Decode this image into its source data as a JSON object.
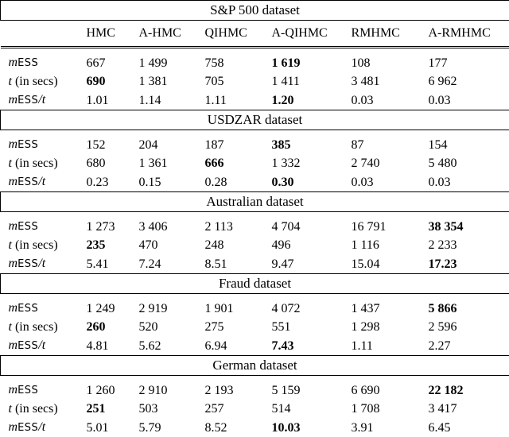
{
  "columns": [
    "HMC",
    "A-HMC",
    "QIHMC",
    "A-QIHMC",
    "RMHMC",
    "A-RMHMC"
  ],
  "row_labels": {
    "mess_prefix": "m",
    "mess_sf": "ESS",
    "time": "t",
    "time_suffix": " (in secs)",
    "ratio_prefix": "m",
    "ratio_sf": "ESS",
    "ratio_suffix": "/t"
  },
  "datasets": [
    {
      "name": "S&P 500 dataset",
      "mess": [
        "667",
        "1 499",
        "758",
        "1 619",
        "108",
        "177"
      ],
      "time": [
        "690",
        "1 381",
        "705",
        "1 411",
        "3 481",
        "6 962"
      ],
      "ratio": [
        "1.01",
        "1.14",
        "1.11",
        "1.20",
        "0.03",
        "0.03"
      ],
      "bold": {
        "mess": 3,
        "time": 0,
        "ratio": 3
      }
    },
    {
      "name": "USDZAR dataset",
      "mess": [
        "152",
        "204",
        "187",
        "385",
        "87",
        "154"
      ],
      "time": [
        "680",
        "1 361",
        "666",
        "1 332",
        "2 740",
        "5 480"
      ],
      "ratio": [
        "0.23",
        "0.15",
        "0.28",
        "0.30",
        "0.03",
        "0.03"
      ],
      "bold": {
        "mess": 3,
        "time": 2,
        "ratio": 3
      }
    },
    {
      "name": "Australian dataset",
      "mess": [
        "1 273",
        "3 406",
        "2 113",
        "4 704",
        "16 791",
        "38 354"
      ],
      "time": [
        "235",
        "470",
        "248",
        "496",
        "1 116",
        "2 233"
      ],
      "ratio": [
        "5.41",
        "7.24",
        "8.51",
        "9.47",
        "15.04",
        "17.23"
      ],
      "bold": {
        "mess": 5,
        "time": 0,
        "ratio": 5
      }
    },
    {
      "name": "Fraud dataset",
      "mess": [
        "1 249",
        "2 919",
        "1 901",
        "4 072",
        "1 437",
        "5 866"
      ],
      "time": [
        "260",
        "520",
        "275",
        "551",
        "1 298",
        "2 596"
      ],
      "ratio": [
        "4.81",
        "5.62",
        "6.94",
        "7.43",
        "1.11",
        "2.27"
      ],
      "bold": {
        "mess": 5,
        "time": 0,
        "ratio": 3
      }
    },
    {
      "name": "German dataset",
      "mess": [
        "1 260",
        "2 910",
        "2 193",
        "5 159",
        "6 690",
        "22 182"
      ],
      "time": [
        "251",
        "503",
        "257",
        "514",
        "1 708",
        "3 417"
      ],
      "ratio": [
        "5.01",
        "5.79",
        "8.52",
        "10.03",
        "3.91",
        "6.45"
      ],
      "bold": {
        "mess": 5,
        "time": 0,
        "ratio": 3
      }
    }
  ]
}
